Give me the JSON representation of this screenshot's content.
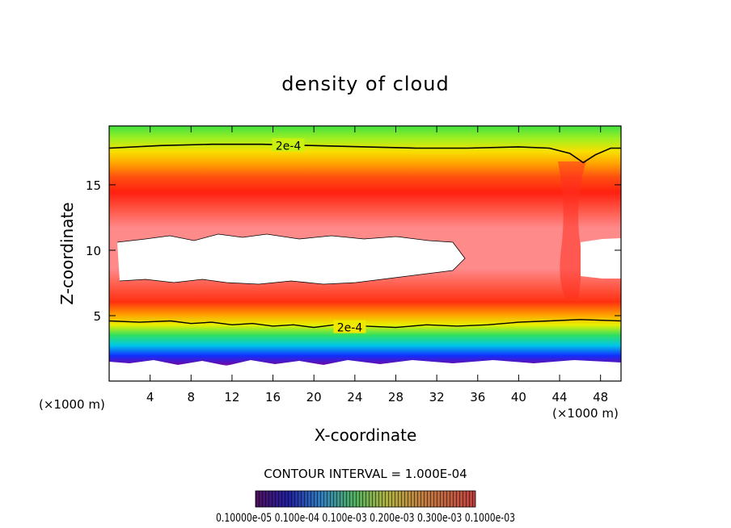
{
  "chart_data": {
    "type": "heatmap",
    "title": "density of cloud",
    "xlabel": "X-coordinate",
    "ylabel": "Z-coordinate",
    "x_unit_left": "(×1000 m)",
    "x_unit_right": "(×1000 m)",
    "xlim": [
      0,
      50
    ],
    "ylim": [
      0,
      19.5
    ],
    "x_ticks": [
      4,
      8,
      12,
      16,
      20,
      24,
      28,
      32,
      36,
      40,
      44,
      48
    ],
    "y_ticks": [
      5,
      10,
      15
    ],
    "contour_interval_text": "CONTOUR INTERVAL = 1.000E-04",
    "contour_labels": [
      {
        "text": "2e-4",
        "x": 17.5,
        "z": 18.0
      },
      {
        "text": "2e-4",
        "x": 23.5,
        "z": 4.1
      }
    ],
    "contour_2e4_upper": [
      [
        0,
        17.8
      ],
      [
        5,
        18.0
      ],
      [
        10,
        18.1
      ],
      [
        15,
        18.1
      ],
      [
        20,
        18.0
      ],
      [
        25,
        17.9
      ],
      [
        30,
        17.8
      ],
      [
        35,
        17.8
      ],
      [
        40,
        17.9
      ],
      [
        43,
        17.8
      ],
      [
        45,
        17.4
      ],
      [
        46.3,
        16.7
      ],
      [
        47.5,
        17.3
      ],
      [
        49,
        17.8
      ],
      [
        50,
        17.8
      ]
    ],
    "contour_2e4_lower": [
      [
        0,
        4.6
      ],
      [
        3,
        4.5
      ],
      [
        6,
        4.6
      ],
      [
        8,
        4.4
      ],
      [
        10,
        4.5
      ],
      [
        12,
        4.3
      ],
      [
        14,
        4.4
      ],
      [
        16,
        4.2
      ],
      [
        18,
        4.3
      ],
      [
        20,
        4.1
      ],
      [
        22,
        4.3
      ],
      [
        25,
        4.2
      ],
      [
        28,
        4.1
      ],
      [
        31,
        4.3
      ],
      [
        34,
        4.2
      ],
      [
        37,
        4.3
      ],
      [
        40,
        4.5
      ],
      [
        43,
        4.6
      ],
      [
        46,
        4.7
      ],
      [
        50,
        4.6
      ]
    ],
    "colorbar_labels": "0.10000e-05 0.100e-04 0.100e-03 0.200e-03 0.300e-03 0.1000e-03",
    "colors": {
      "purple": "#6a0aa8",
      "blue": "#1030ff",
      "cyan": "#00d0e0",
      "green": "#40e040",
      "yellow": "#f0f000",
      "orange": "#ff9a00",
      "red": "#ff2a10",
      "pink": "#ff7f7f"
    }
  }
}
